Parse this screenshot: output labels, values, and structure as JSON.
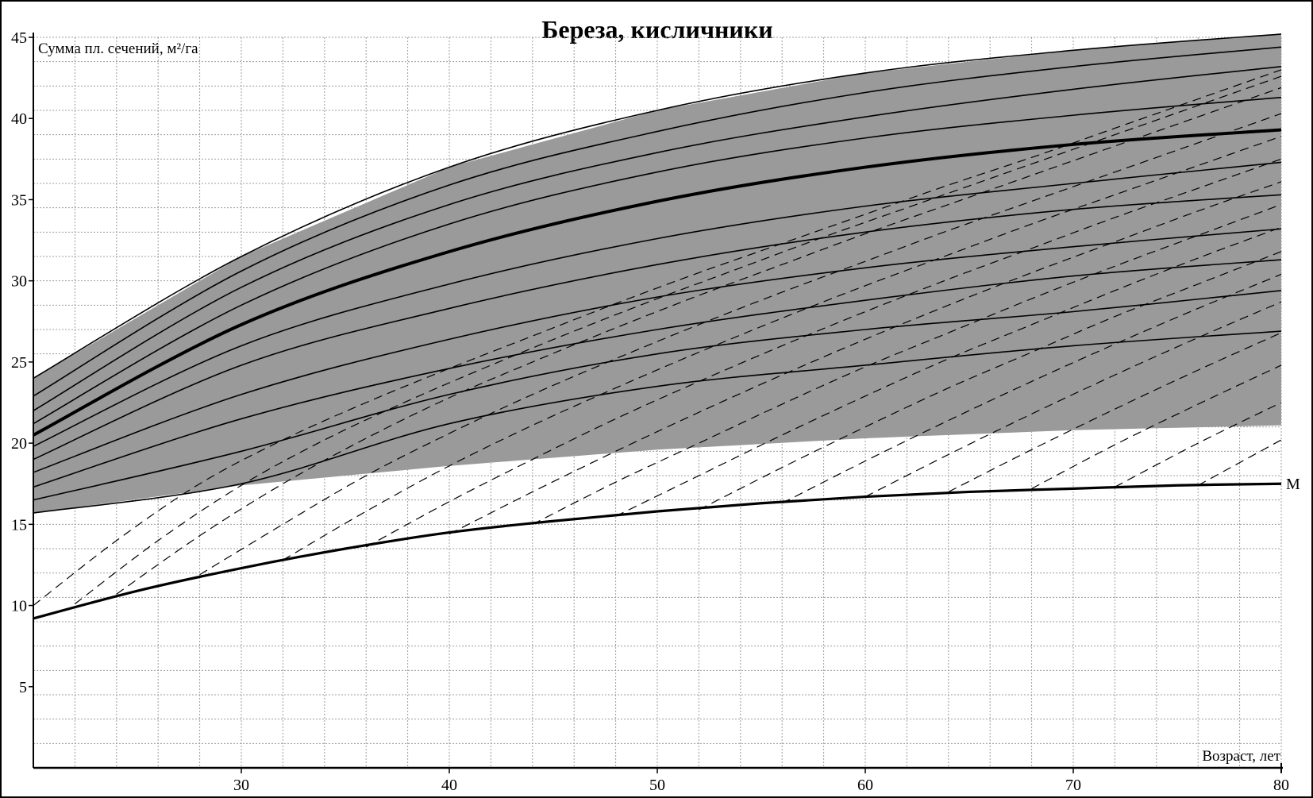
{
  "chart_data": {
    "type": "line",
    "title": "Береза, кисличники",
    "ylabel": "Сумма пл. сечений, м²/га",
    "xlabel": "Возраст, лет",
    "xlim": [
      20,
      80
    ],
    "ylim": [
      0,
      45
    ],
    "x_ticks": [
      30,
      40,
      50,
      60,
      70,
      80
    ],
    "y_ticks": [
      5,
      10,
      15,
      20,
      25,
      30,
      35,
      40,
      45
    ],
    "grid": true,
    "colors": {
      "band": "#9a9a9a",
      "line": "#000000",
      "grid": "#9c9c9c",
      "background": "#ffffff"
    },
    "band": {
      "x": [
        20,
        30,
        40,
        50,
        60,
        70,
        80
      ],
      "upper": [
        24.0,
        31.5,
        37.0,
        40.5,
        42.8,
        44.2,
        45.2
      ],
      "lower": [
        15.7,
        17.4,
        18.6,
        19.6,
        20.3,
        20.8,
        21.1
      ]
    },
    "curves": {
      "x": [
        20,
        30,
        40,
        50,
        60,
        70,
        80
      ],
      "values": [
        [
          15.7,
          17.5,
          21.2,
          23.5,
          24.8,
          26.0,
          26.9
        ],
        [
          16.5,
          19.5,
          23.0,
          25.5,
          27.0,
          28.1,
          29.4
        ],
        [
          17.3,
          21.5,
          24.6,
          27.0,
          28.8,
          30.3,
          31.3
        ],
        [
          18.2,
          23.0,
          26.4,
          29.0,
          30.8,
          32.1,
          33.2
        ],
        [
          19.0,
          24.8,
          28.3,
          31.0,
          33.0,
          34.4,
          35.3
        ],
        [
          19.8,
          26.0,
          29.8,
          32.6,
          34.6,
          36.0,
          37.3
        ],
        [
          20.5,
          27.3,
          31.8,
          34.9,
          37.0,
          38.4,
          39.3
        ],
        [
          21.2,
          28.5,
          33.5,
          36.7,
          38.8,
          40.2,
          41.3
        ],
        [
          22.0,
          29.6,
          34.7,
          37.9,
          40.1,
          41.8,
          43.2
        ],
        [
          22.9,
          30.6,
          35.9,
          39.2,
          41.6,
          43.2,
          44.4
        ],
        [
          24.0,
          31.5,
          37.0,
          40.5,
          42.8,
          44.2,
          45.2
        ]
      ],
      "bold_index": 6
    },
    "series": [
      {
        "name": "M",
        "x": [
          20,
          25,
          30,
          35,
          40,
          45,
          50,
          55,
          60,
          65,
          70,
          75,
          80
        ],
        "values": [
          9.2,
          10.9,
          12.3,
          13.5,
          14.5,
          15.2,
          15.8,
          16.3,
          16.7,
          17.0,
          17.2,
          17.4,
          17.5
        ]
      }
    ],
    "dashed_lines": [
      [
        [
          20,
          10.0
        ],
        [
          24,
          14.0
        ],
        [
          28,
          17.5
        ],
        [
          32,
          20.2
        ],
        [
          36,
          22.5
        ],
        [
          40,
          24.6
        ],
        [
          44,
          26.6
        ],
        [
          48,
          28.6
        ],
        [
          52,
          30.5
        ],
        [
          56,
          32.3
        ],
        [
          60,
          34.1
        ],
        [
          64,
          35.9
        ],
        [
          68,
          37.6
        ],
        [
          72,
          39.4
        ],
        [
          76,
          41.2
        ],
        [
          80,
          43.0
        ]
      ],
      [
        [
          22,
          10.1
        ],
        [
          26,
          14.0
        ],
        [
          30,
          17.4
        ],
        [
          34,
          20.2
        ],
        [
          38,
          22.6
        ],
        [
          42,
          24.8
        ],
        [
          46,
          26.9
        ],
        [
          50,
          28.9
        ],
        [
          54,
          30.8
        ],
        [
          58,
          32.7
        ],
        [
          62,
          34.5
        ],
        [
          66,
          36.3
        ],
        [
          70,
          38.1
        ],
        [
          74,
          39.9
        ],
        [
          78,
          41.7
        ],
        [
          80,
          42.6
        ]
      ],
      [
        [
          24,
          10.7
        ],
        [
          28,
          14.3
        ],
        [
          32,
          17.5
        ],
        [
          36,
          20.3
        ],
        [
          40,
          22.8
        ],
        [
          44,
          25.0
        ],
        [
          48,
          27.1
        ],
        [
          52,
          29.1
        ],
        [
          56,
          31.0
        ],
        [
          60,
          32.9
        ],
        [
          64,
          34.7
        ],
        [
          68,
          36.5
        ],
        [
          72,
          38.3
        ],
        [
          76,
          40.1
        ],
        [
          80,
          41.9
        ]
      ],
      [
        [
          28,
          11.9
        ],
        [
          32,
          15.0
        ],
        [
          36,
          18.0
        ],
        [
          40,
          20.6
        ],
        [
          44,
          23.0
        ],
        [
          48,
          25.2
        ],
        [
          52,
          27.3
        ],
        [
          56,
          29.3
        ],
        [
          60,
          31.2
        ],
        [
          64,
          33.1
        ],
        [
          68,
          34.9
        ],
        [
          72,
          36.7
        ],
        [
          76,
          38.5
        ],
        [
          80,
          40.3
        ]
      ],
      [
        [
          32,
          12.8
        ],
        [
          36,
          15.8
        ],
        [
          40,
          18.6
        ],
        [
          44,
          21.1
        ],
        [
          48,
          23.4
        ],
        [
          52,
          25.6
        ],
        [
          56,
          27.7
        ],
        [
          60,
          29.7
        ],
        [
          64,
          31.6
        ],
        [
          68,
          33.5
        ],
        [
          72,
          35.3
        ],
        [
          76,
          37.1
        ],
        [
          80,
          38.9
        ]
      ],
      [
        [
          36,
          13.6
        ],
        [
          40,
          16.4
        ],
        [
          44,
          19.0
        ],
        [
          48,
          21.5
        ],
        [
          52,
          23.8
        ],
        [
          56,
          26.0
        ],
        [
          60,
          28.1
        ],
        [
          64,
          30.1
        ],
        [
          68,
          32.0
        ],
        [
          72,
          33.9
        ],
        [
          76,
          35.7
        ],
        [
          80,
          37.5
        ]
      ],
      [
        [
          40,
          14.4
        ],
        [
          44,
          17.0
        ],
        [
          48,
          19.5
        ],
        [
          52,
          21.9
        ],
        [
          56,
          24.2
        ],
        [
          60,
          26.4
        ],
        [
          64,
          28.5
        ],
        [
          68,
          30.5
        ],
        [
          72,
          32.4
        ],
        [
          76,
          34.3
        ],
        [
          80,
          36.1
        ]
      ],
      [
        [
          44,
          15.0
        ],
        [
          48,
          17.6
        ],
        [
          52,
          20.0
        ],
        [
          56,
          22.4
        ],
        [
          60,
          24.7
        ],
        [
          64,
          26.8
        ],
        [
          68,
          28.9
        ],
        [
          72,
          30.9
        ],
        [
          76,
          32.8
        ],
        [
          80,
          34.7
        ]
      ],
      [
        [
          48,
          15.5
        ],
        [
          52,
          18.0
        ],
        [
          56,
          20.5
        ],
        [
          60,
          22.9
        ],
        [
          64,
          25.2
        ],
        [
          68,
          27.3
        ],
        [
          72,
          29.4
        ],
        [
          76,
          31.4
        ],
        [
          80,
          33.3
        ]
      ],
      [
        [
          52,
          15.9
        ],
        [
          56,
          18.5
        ],
        [
          60,
          21.0
        ],
        [
          64,
          23.4
        ],
        [
          68,
          25.6
        ],
        [
          72,
          27.8
        ],
        [
          76,
          29.8
        ],
        [
          80,
          31.8
        ]
      ],
      [
        [
          56,
          16.3
        ],
        [
          60,
          18.9
        ],
        [
          64,
          21.4
        ],
        [
          68,
          23.8
        ],
        [
          72,
          26.1
        ],
        [
          76,
          28.3
        ],
        [
          80,
          30.4
        ]
      ],
      [
        [
          60,
          16.7
        ],
        [
          64,
          19.3
        ],
        [
          68,
          21.8
        ],
        [
          72,
          24.2
        ],
        [
          76,
          26.5
        ],
        [
          80,
          28.7
        ]
      ],
      [
        [
          64,
          17.0
        ],
        [
          68,
          19.6
        ],
        [
          72,
          22.1
        ],
        [
          76,
          24.5
        ],
        [
          80,
          26.8
        ]
      ],
      [
        [
          68,
          17.2
        ],
        [
          72,
          19.9
        ],
        [
          76,
          22.4
        ],
        [
          80,
          24.8
        ]
      ],
      [
        [
          72,
          17.3
        ],
        [
          76,
          20.0
        ],
        [
          80,
          22.5
        ]
      ],
      [
        [
          76,
          17.4
        ],
        [
          80,
          20.2
        ]
      ]
    ]
  }
}
